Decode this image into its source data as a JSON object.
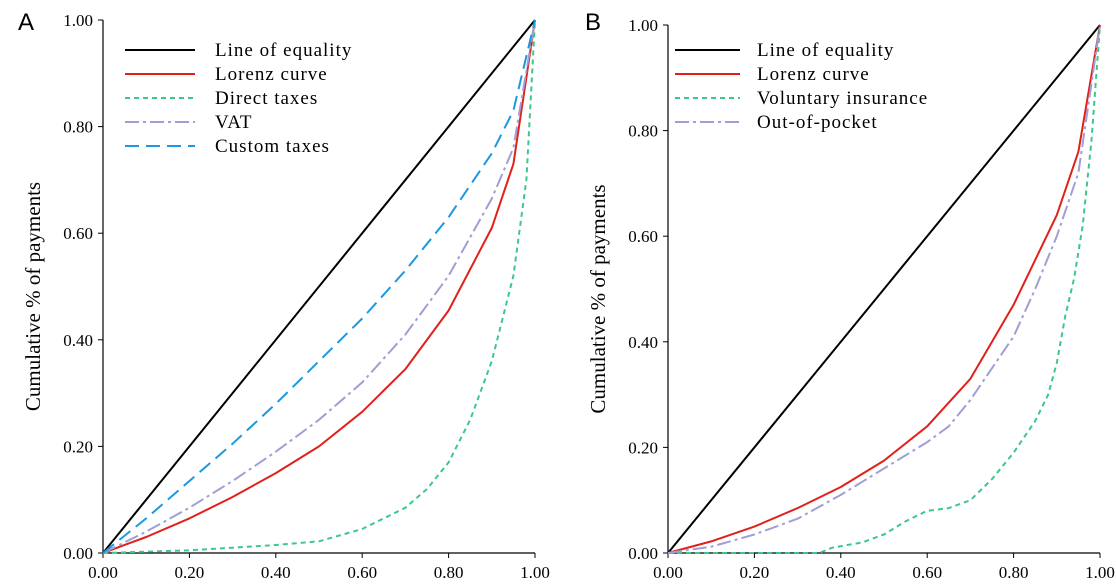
{
  "chart_data": [
    {
      "type": "line",
      "panel_label": "A",
      "xlabel": "",
      "ylabel": "Cumulative % of payments",
      "xlim": [
        0,
        1
      ],
      "ylim": [
        0,
        1
      ],
      "xticks": [
        "0.00",
        "0.20",
        "0.40",
        "0.60",
        "0.80",
        "1.00"
      ],
      "yticks": [
        "0.00",
        "0.20",
        "0.40",
        "0.60",
        "0.80",
        "1.00"
      ],
      "grid": false,
      "legend_position": "top-left",
      "series": [
        {
          "name": "Line of equality",
          "color": "#000000",
          "dash": "solid",
          "x": [
            0,
            1
          ],
          "y": [
            0,
            1
          ]
        },
        {
          "name": "Lorenz curve",
          "color": "#e0201b",
          "dash": "solid",
          "x": [
            0,
            0.1,
            0.2,
            0.3,
            0.4,
            0.5,
            0.6,
            0.7,
            0.8,
            0.9,
            0.95,
            1.0
          ],
          "y": [
            0,
            0.03,
            0.065,
            0.105,
            0.15,
            0.2,
            0.265,
            0.345,
            0.455,
            0.61,
            0.73,
            1.0
          ]
        },
        {
          "name": "Direct taxes",
          "color": "#3cc88a",
          "dash": "short-dash",
          "x": [
            0,
            0.2,
            0.3,
            0.4,
            0.5,
            0.6,
            0.7,
            0.75,
            0.8,
            0.85,
            0.9,
            0.95,
            0.98,
            1.0
          ],
          "y": [
            0,
            0.005,
            0.01,
            0.015,
            0.022,
            0.045,
            0.085,
            0.12,
            0.17,
            0.25,
            0.36,
            0.52,
            0.7,
            1.0
          ]
        },
        {
          "name": "VAT",
          "color": "#9f9fd6",
          "dash": "dash-dot",
          "x": [
            0,
            0.1,
            0.2,
            0.3,
            0.4,
            0.5,
            0.6,
            0.7,
            0.8,
            0.9,
            0.95,
            1.0
          ],
          "y": [
            0,
            0.04,
            0.085,
            0.135,
            0.19,
            0.25,
            0.32,
            0.41,
            0.52,
            0.665,
            0.76,
            1.0
          ]
        },
        {
          "name": "Custom taxes",
          "color": "#1b98e0",
          "dash": "long-dash",
          "x": [
            0,
            0.1,
            0.2,
            0.3,
            0.4,
            0.5,
            0.6,
            0.7,
            0.8,
            0.9,
            0.95,
            1.0
          ],
          "y": [
            0,
            0.065,
            0.135,
            0.205,
            0.28,
            0.36,
            0.44,
            0.53,
            0.63,
            0.75,
            0.83,
            1.0
          ]
        }
      ]
    },
    {
      "type": "line",
      "panel_label": "B",
      "xlabel": "",
      "ylabel": "Cumulative % of payments",
      "xlim": [
        0,
        1
      ],
      "ylim": [
        0,
        1
      ],
      "xticks": [
        "0.00",
        "0.20",
        "0.40",
        "0.60",
        "0.80",
        "1.00"
      ],
      "yticks": [
        "0.00",
        "0.20",
        "0.40",
        "0.60",
        "0.80",
        "1.00"
      ],
      "grid": false,
      "legend_position": "top-left",
      "series": [
        {
          "name": "Line of equality",
          "color": "#000000",
          "dash": "solid",
          "x": [
            0,
            1
          ],
          "y": [
            0,
            1
          ]
        },
        {
          "name": "Lorenz curve",
          "color": "#e0201b",
          "dash": "solid",
          "x": [
            0,
            0.1,
            0.2,
            0.3,
            0.4,
            0.5,
            0.6,
            0.7,
            0.8,
            0.9,
            0.95,
            1.0
          ],
          "y": [
            0,
            0.022,
            0.05,
            0.085,
            0.125,
            0.175,
            0.24,
            0.33,
            0.47,
            0.64,
            0.76,
            1.0
          ]
        },
        {
          "name": "Voluntary insurance",
          "color": "#3cc88a",
          "dash": "short-dash",
          "x": [
            0,
            0.35,
            0.38,
            0.45,
            0.5,
            0.55,
            0.6,
            0.65,
            0.7,
            0.75,
            0.8,
            0.85,
            0.88,
            0.9,
            0.92,
            0.94,
            0.96,
            0.98,
            1.0
          ],
          "y": [
            0,
            0,
            0.01,
            0.02,
            0.035,
            0.06,
            0.08,
            0.085,
            0.1,
            0.14,
            0.19,
            0.25,
            0.3,
            0.36,
            0.45,
            0.52,
            0.62,
            0.78,
            1.0
          ]
        },
        {
          "name": "Out-of-pocket",
          "color": "#9f9fd6",
          "dash": "dash-dot",
          "x": [
            0,
            0.1,
            0.2,
            0.3,
            0.4,
            0.5,
            0.6,
            0.65,
            0.7,
            0.75,
            0.8,
            0.85,
            0.9,
            0.95,
            1.0
          ],
          "y": [
            0,
            0.012,
            0.035,
            0.065,
            0.11,
            0.16,
            0.21,
            0.24,
            0.29,
            0.35,
            0.41,
            0.5,
            0.6,
            0.72,
            1.0
          ]
        }
      ]
    }
  ]
}
